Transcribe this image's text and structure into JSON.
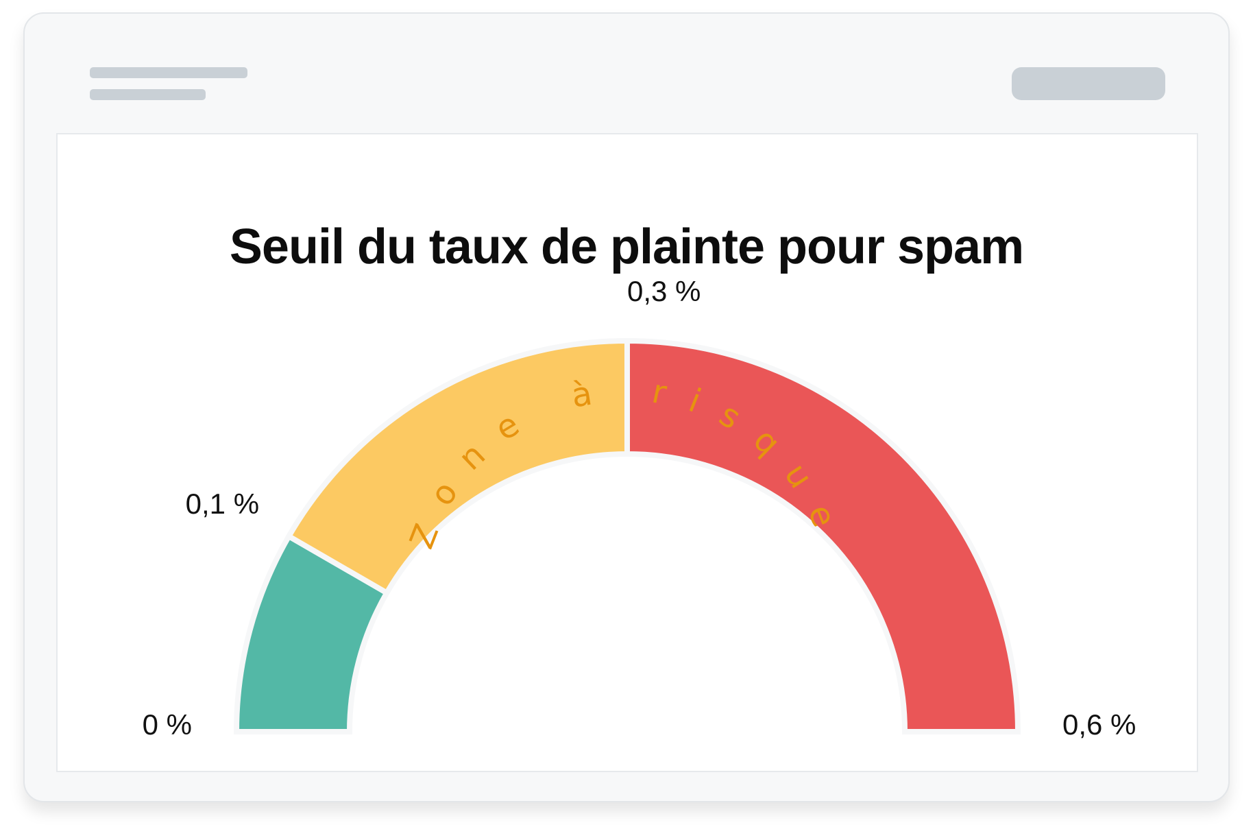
{
  "window": {
    "placeholder_colors": {
      "skeleton": "#c9d0d6"
    }
  },
  "chart_data": {
    "type": "gauge",
    "title": "Seuil du taux de plainte pour spam",
    "range": [
      0,
      0.6
    ],
    "segments": [
      {
        "from": 0,
        "to": 0.1,
        "color": "#53b8a6",
        "label": ""
      },
      {
        "from": 0.1,
        "to": 0.3,
        "color": "#fcc962",
        "label": "Zone à risque"
      },
      {
        "from": 0.3,
        "to": 0.6,
        "color": "#ea5657",
        "label": ""
      }
    ],
    "ticks": [
      {
        "value": 0,
        "label": "0 %"
      },
      {
        "value": 0.1,
        "label": "0,1 %"
      },
      {
        "value": 0.3,
        "label": "0,3 %"
      },
      {
        "value": 0.6,
        "label": "0,6 %"
      }
    ],
    "zone_label_color": "#e6930f"
  }
}
